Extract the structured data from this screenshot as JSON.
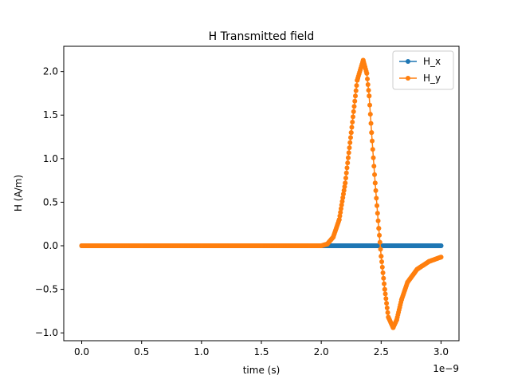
{
  "chart_data": {
    "type": "line",
    "title": "H Transmitted field",
    "xlabel": "time (s)",
    "ylabel": "H (A/m)",
    "x_offset_label": "1e−9",
    "xlim": [
      -0.15,
      3.15
    ],
    "ylim": [
      -1.09,
      2.29
    ],
    "x_ticks": [
      0.0,
      0.5,
      1.0,
      1.5,
      2.0,
      2.5,
      3.0
    ],
    "x_tick_labels": [
      "0.0",
      "0.5",
      "1.0",
      "1.5",
      "2.0",
      "2.5",
      "3.0"
    ],
    "y_ticks": [
      -1.0,
      -0.5,
      0.0,
      0.5,
      1.0,
      1.5,
      2.0
    ],
    "y_tick_labels": [
      "−1.0",
      "−0.5",
      "0.0",
      "0.5",
      "1.0",
      "1.5",
      "2.0"
    ],
    "grid": false,
    "legend_position": "top-right",
    "series": [
      {
        "name": "H_x",
        "color": "#1f77b4",
        "x": [
          0.0,
          0.5,
          1.0,
          1.5,
          2.0,
          2.5,
          3.0
        ],
        "y": [
          0.0,
          0.0,
          0.0,
          0.0,
          0.0,
          0.0,
          0.0
        ]
      },
      {
        "name": "H_y",
        "color": "#ff7f0e",
        "x": [
          0.0,
          0.5,
          1.0,
          1.5,
          1.9,
          2.0,
          2.05,
          2.1,
          2.15,
          2.2,
          2.25,
          2.3,
          2.35,
          2.38,
          2.4,
          2.42,
          2.45,
          2.48,
          2.5,
          2.53,
          2.56,
          2.6,
          2.63,
          2.67,
          2.72,
          2.8,
          2.9,
          3.0
        ],
        "y": [
          0.0,
          0.0,
          0.0,
          0.0,
          0.0,
          0.0,
          0.02,
          0.1,
          0.3,
          0.72,
          1.3,
          1.9,
          2.13,
          1.98,
          1.72,
          1.3,
          0.72,
          0.2,
          -0.12,
          -0.5,
          -0.82,
          -0.94,
          -0.85,
          -0.62,
          -0.42,
          -0.27,
          -0.18,
          -0.13
        ]
      }
    ]
  }
}
